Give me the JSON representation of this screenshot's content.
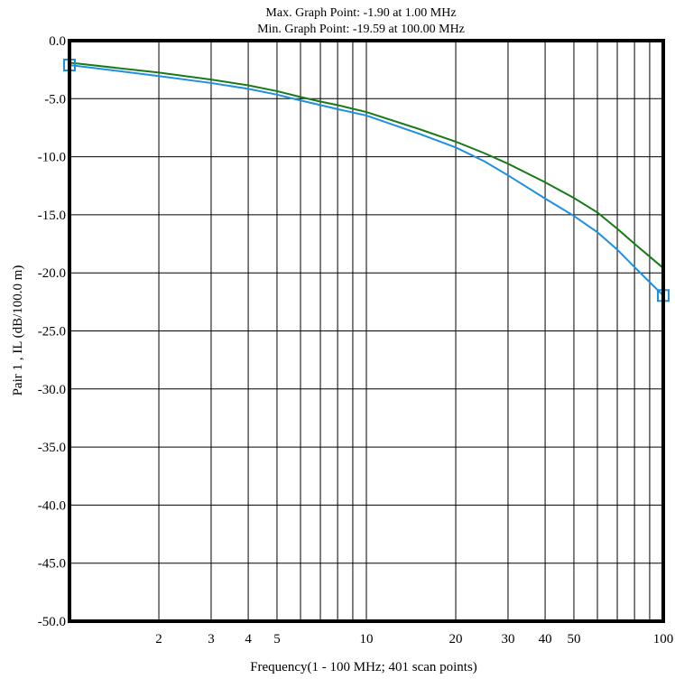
{
  "header": {
    "max_line": "Max. Graph Point: -1.90 at 1.00 MHz",
    "min_line": "Min. Graph Point: -19.59 at 100.00 MHz"
  },
  "chart_data": {
    "type": "line",
    "xscale": "log",
    "xlim": [
      1,
      100
    ],
    "ylim": [
      -50,
      0
    ],
    "xlabel": "Frequency(1 - 100 MHz; 401 scan points)",
    "ylabel": "Pair 1 , IL (dB/100.0 m)",
    "grid": true,
    "x_ticks": [
      {
        "value": 2,
        "label": "2"
      },
      {
        "value": 3,
        "label": "3"
      },
      {
        "value": 4,
        "label": "4"
      },
      {
        "value": 5,
        "label": "5"
      },
      {
        "value": 10,
        "label": "10"
      },
      {
        "value": 20,
        "label": "20"
      },
      {
        "value": 30,
        "label": "30"
      },
      {
        "value": 40,
        "label": "40"
      },
      {
        "value": 50,
        "label": "50"
      },
      {
        "value": 100,
        "label": "100"
      }
    ],
    "x_minor_gridlines": [
      6,
      7,
      8,
      9,
      60,
      70,
      80,
      90
    ],
    "y_ticks": [
      {
        "value": 0,
        "label": "0.0"
      },
      {
        "value": -5,
        "label": "-5.0"
      },
      {
        "value": -10,
        "label": "-10.0"
      },
      {
        "value": -15,
        "label": "-15.0"
      },
      {
        "value": -20,
        "label": "-20.0"
      },
      {
        "value": -25,
        "label": "-25.0"
      },
      {
        "value": -30,
        "label": "-30.0"
      },
      {
        "value": -35,
        "label": "-35.0"
      },
      {
        "value": -40,
        "label": "-40.0"
      },
      {
        "value": -45,
        "label": "-45.0"
      },
      {
        "value": -50,
        "label": "-50.0"
      }
    ],
    "series": [
      {
        "color": "#1a7a1a",
        "x": [
          1,
          2,
          3,
          4,
          5,
          6,
          7,
          8,
          10,
          15,
          20,
          25,
          30,
          40,
          50,
          60,
          70,
          80,
          90,
          100
        ],
        "y": [
          -1.9,
          -2.75,
          -3.35,
          -3.85,
          -4.35,
          -4.85,
          -5.25,
          -5.55,
          -6.15,
          -7.6,
          -8.7,
          -9.7,
          -10.6,
          -12.2,
          -13.55,
          -14.8,
          -16.2,
          -17.5,
          -18.6,
          -19.59
        ]
      },
      {
        "color": "#1e90e0",
        "x": [
          1,
          2,
          3,
          4,
          5,
          6,
          7,
          8,
          10,
          15,
          20,
          25,
          30,
          40,
          50,
          60,
          70,
          80,
          90,
          100
        ],
        "y": [
          -2.1,
          -3.05,
          -3.65,
          -4.15,
          -4.65,
          -5.15,
          -5.55,
          -5.9,
          -6.45,
          -8.0,
          -9.2,
          -10.4,
          -11.6,
          -13.6,
          -15.1,
          -16.5,
          -18.0,
          -19.5,
          -20.8,
          -21.95
        ],
        "markers_at_x": [
          1,
          100
        ]
      }
    ]
  }
}
